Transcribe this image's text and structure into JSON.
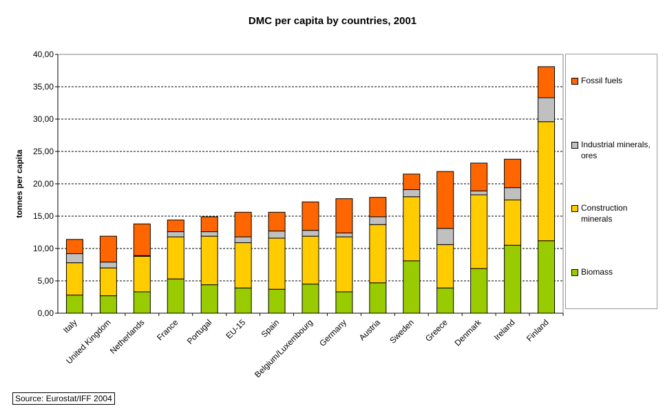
{
  "chart_data": {
    "type": "bar",
    "stacked": true,
    "title": "DMC per capita by countries, 2001",
    "xlabel": "",
    "ylabel": "tonnes per capita",
    "ylim": [
      0,
      40
    ],
    "yticks": [
      "0,00",
      "5,00",
      "10,00",
      "15,00",
      "20,00",
      "25,00",
      "30,00",
      "35,00",
      "40,00"
    ],
    "grid": "horizontal dashed",
    "legend_position": "right",
    "categories": [
      "Italy",
      "United Kingdom",
      "Netherlands",
      "France",
      "Portugal",
      "EU-15",
      "Spain",
      "Belgium/Luxembourg",
      "Germany",
      "Austria",
      "Sweden",
      "Greece",
      "Denmark",
      "Ireland",
      "Finland"
    ],
    "series": [
      {
        "name": "Biomass",
        "color": "#99cc00",
        "values": [
          2.8,
          2.7,
          3.3,
          5.3,
          4.4,
          3.9,
          3.7,
          4.5,
          3.3,
          4.7,
          8.1,
          3.9,
          6.9,
          10.5,
          11.2
        ]
      },
      {
        "name": "Construction minerals",
        "color": "#ffcc00",
        "values": [
          5.0,
          4.3,
          5.5,
          6.5,
          7.5,
          7.0,
          7.9,
          7.4,
          8.5,
          9.0,
          9.9,
          6.7,
          11.4,
          7.0,
          18.4
        ]
      },
      {
        "name": "Industrial minerals, ores",
        "color": "#c0c0c0",
        "values": [
          1.4,
          0.9,
          0.1,
          0.8,
          0.7,
          0.9,
          1.1,
          0.9,
          0.6,
          1.2,
          1.1,
          2.5,
          0.6,
          1.9,
          3.7
        ]
      },
      {
        "name": "Fossil fuels",
        "color": "#ff6600",
        "values": [
          2.2,
          4.0,
          4.9,
          1.8,
          2.3,
          3.8,
          2.9,
          4.4,
          5.3,
          3.0,
          2.4,
          8.8,
          4.3,
          4.4,
          4.8
        ]
      }
    ]
  },
  "legend": {
    "fossil": "Fossil fuels",
    "industrial": "Industrial minerals, ores",
    "construction": "Construction minerals",
    "biomass": "Biomass"
  },
  "source": "Source: Eurostat/IFF 2004"
}
